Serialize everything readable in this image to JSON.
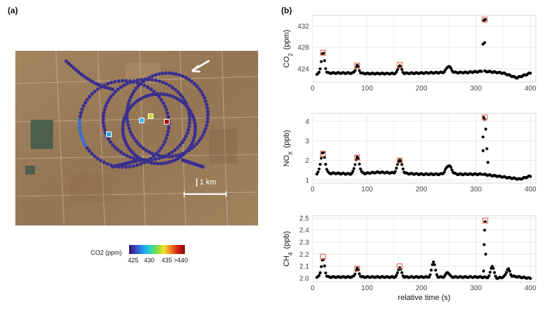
{
  "panels": {
    "a": "(a)",
    "b": "(b)"
  },
  "map": {
    "scale_bar_label": "1 km",
    "colorbar": {
      "title": "CO2 (ppm)",
      "ticks": [
        "425",
        "430",
        "435",
        ">440"
      ],
      "colors": [
        "#2d1266",
        "#3b4bc8",
        "#1e9bf0",
        "#26d4c4",
        "#7ddc40",
        "#f3e12a",
        "#f07a1e",
        "#d01c14",
        "#8a0e0a"
      ]
    },
    "colors": {
      "track": "#3a2f8f",
      "background": "#9a7c55"
    }
  },
  "chart_data": [
    {
      "type": "scatter",
      "ylabel": "CO2 (ppm)",
      "xlim": [
        0,
        410
      ],
      "ylim": [
        421.5,
        434
      ],
      "xticks": [
        "0",
        "100",
        "200",
        "300",
        "400"
      ],
      "yticks": [
        {
          "v": 424,
          "label": "424"
        },
        {
          "v": 428,
          "label": "428"
        },
        {
          "v": 432,
          "label": "432"
        }
      ],
      "baseline": [
        [
          8,
          423.0
        ],
        [
          30,
          423.2
        ],
        [
          70,
          423.2
        ],
        [
          100,
          423.1
        ],
        [
          140,
          423.1
        ],
        [
          200,
          423.2
        ],
        [
          240,
          423.3
        ],
        [
          280,
          423.3
        ],
        [
          310,
          423.5
        ],
        [
          320,
          423.5
        ],
        [
          350,
          423.2
        ],
        [
          375,
          422.3
        ],
        [
          395,
          423.0
        ],
        [
          400,
          423.2
        ]
      ],
      "peaks": [
        {
          "x": 19,
          "h": 3.9,
          "w": 3
        },
        {
          "x": 82,
          "h": 1.4,
          "w": 3
        },
        {
          "x": 160,
          "h": 1.5,
          "w": 3
        },
        {
          "x": 250,
          "h": 1.2,
          "w": 4
        }
      ],
      "gap": [
        311,
        315
      ],
      "extra_points": [
        [
          313,
          428.6
        ],
        [
          316,
          428.9
        ],
        [
          314,
          433.0
        ],
        [
          317,
          433.2
        ],
        [
          315,
          433.1
        ]
      ],
      "highlighted": [
        [
          19,
          427.0
        ],
        [
          82,
          424.6
        ],
        [
          160,
          424.7
        ],
        [
          316,
          433.2
        ]
      ]
    },
    {
      "type": "scatter",
      "ylabel": "NOx (ppb)",
      "xlim": [
        0,
        410
      ],
      "ylim": [
        0.85,
        4.4
      ],
      "xticks": [
        "0",
        "100",
        "200",
        "300",
        "400"
      ],
      "yticks": [
        {
          "v": 1,
          "label": "1"
        },
        {
          "v": 2,
          "label": "2"
        },
        {
          "v": 3,
          "label": "3"
        },
        {
          "v": 4,
          "label": "4"
        }
      ],
      "baseline": [
        [
          8,
          1.3
        ],
        [
          40,
          1.35
        ],
        [
          80,
          1.3
        ],
        [
          120,
          1.4
        ],
        [
          200,
          1.3
        ],
        [
          280,
          1.3
        ],
        [
          310,
          1.3
        ],
        [
          340,
          1.2
        ],
        [
          380,
          1.05
        ],
        [
          400,
          1.2
        ]
      ],
      "peaks": [
        {
          "x": 19,
          "h": 1.1,
          "w": 4
        },
        {
          "x": 82,
          "h": 0.85,
          "w": 4
        },
        {
          "x": 160,
          "h": 0.7,
          "w": 4
        },
        {
          "x": 250,
          "h": 0.45,
          "w": 5
        }
      ],
      "gap": [
        311,
        313
      ],
      "extra_points": [
        [
          313,
          2.5
        ],
        [
          313,
          3.2
        ],
        [
          314,
          4.2
        ],
        [
          316,
          4.1
        ],
        [
          318,
          3.6
        ],
        [
          320,
          2.6
        ],
        [
          322,
          1.9
        ]
      ],
      "highlighted": [
        [
          19,
          2.35
        ],
        [
          82,
          2.15
        ],
        [
          160,
          2.0
        ],
        [
          316,
          4.2
        ]
      ]
    },
    {
      "type": "scatter",
      "ylabel": "CH4 (ppb)",
      "xlabel": "relative time (s)",
      "xlim": [
        0,
        410
      ],
      "ylim": [
        1.97,
        2.52
      ],
      "xticks": [
        "0",
        "100",
        "200",
        "300",
        "400"
      ],
      "yticks": [
        {
          "v": 2.0,
          "label": "2.0"
        },
        {
          "v": 2.1,
          "label": "2.1"
        },
        {
          "v": 2.2,
          "label": "2.2"
        },
        {
          "v": 2.3,
          "label": "2.3"
        },
        {
          "v": 2.4,
          "label": "2.4"
        },
        {
          "v": 2.5,
          "label": "2.5"
        }
      ],
      "baseline": [
        [
          8,
          2.01
        ],
        [
          100,
          2.01
        ],
        [
          200,
          2.01
        ],
        [
          260,
          2.01
        ],
        [
          310,
          2.01
        ],
        [
          340,
          2.0
        ],
        [
          360,
          2.02
        ],
        [
          400,
          2.0
        ]
      ],
      "peaks": [
        {
          "x": 19,
          "h": 0.15,
          "w": 3
        },
        {
          "x": 82,
          "h": 0.07,
          "w": 3
        },
        {
          "x": 160,
          "h": 0.08,
          "w": 3
        },
        {
          "x": 222,
          "h": 0.13,
          "w": 3
        },
        {
          "x": 248,
          "h": 0.04,
          "w": 3
        },
        {
          "x": 330,
          "h": 0.1,
          "w": 3
        },
        {
          "x": 359,
          "h": 0.06,
          "w": 3
        }
      ],
      "gap": [
        312,
        313
      ],
      "extra_points": [
        [
          314,
          2.06
        ],
        [
          315,
          2.28
        ],
        [
          316,
          2.4
        ],
        [
          317,
          2.47
        ],
        [
          318,
          2.2
        ]
      ],
      "highlighted": [
        [
          19,
          2.18
        ],
        [
          82,
          2.08
        ],
        [
          160,
          2.1
        ],
        [
          317,
          2.48
        ]
      ]
    }
  ]
}
